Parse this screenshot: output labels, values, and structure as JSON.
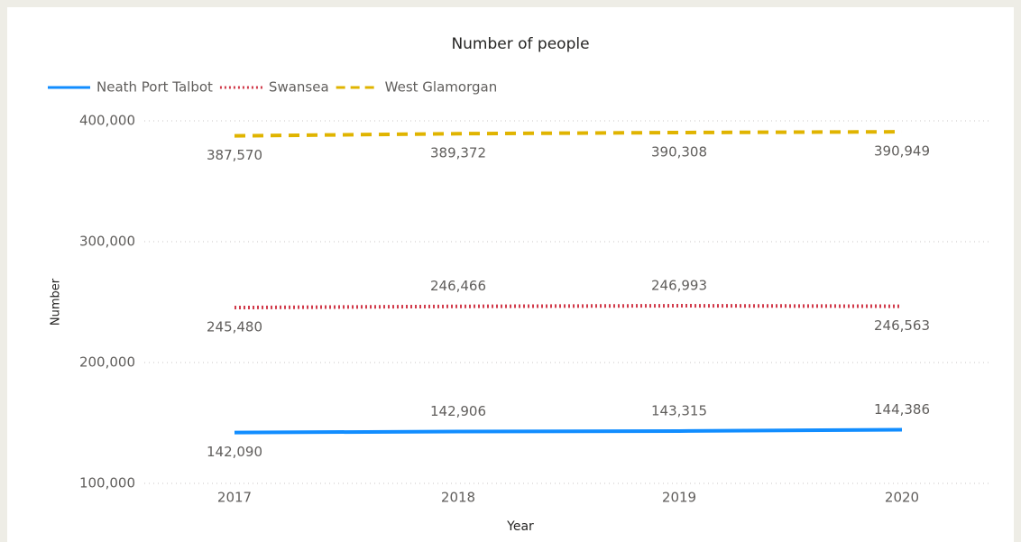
{
  "chart_data": {
    "type": "line",
    "title": "Number of people",
    "x_label": "Year",
    "y_label": "Number",
    "categories": [
      "2017",
      "2018",
      "2019",
      "2020"
    ],
    "series": [
      {
        "name": "Neath Port Talbot",
        "color": "#118dff",
        "style": "solid",
        "values": [
          142090,
          142906,
          143315,
          144386
        ],
        "value_labels": [
          "142,090",
          "142,906",
          "143,315",
          "144,386"
        ]
      },
      {
        "name": "Swansea",
        "color": "#d13a4a",
        "style": "dotted",
        "values": [
          245480,
          246466,
          246993,
          246563
        ],
        "value_labels": [
          "245,480",
          "246,466",
          "246,993",
          "246,563"
        ]
      },
      {
        "name": "West Glamorgan",
        "color": "#e0b400",
        "style": "dashed",
        "values": [
          387570,
          389372,
          390308,
          390949
        ],
        "value_labels": [
          "387,570",
          "389,372",
          "390,308",
          "390,949"
        ]
      }
    ],
    "ylim": [
      100000,
      400000
    ],
    "yticks": [
      {
        "value": 100000,
        "label": "100,000"
      },
      {
        "value": 200000,
        "label": "200,000"
      },
      {
        "value": 300000,
        "label": "300,000"
      },
      {
        "value": 400000,
        "label": "400,000"
      }
    ],
    "grid": true,
    "legend": "top-left"
  }
}
